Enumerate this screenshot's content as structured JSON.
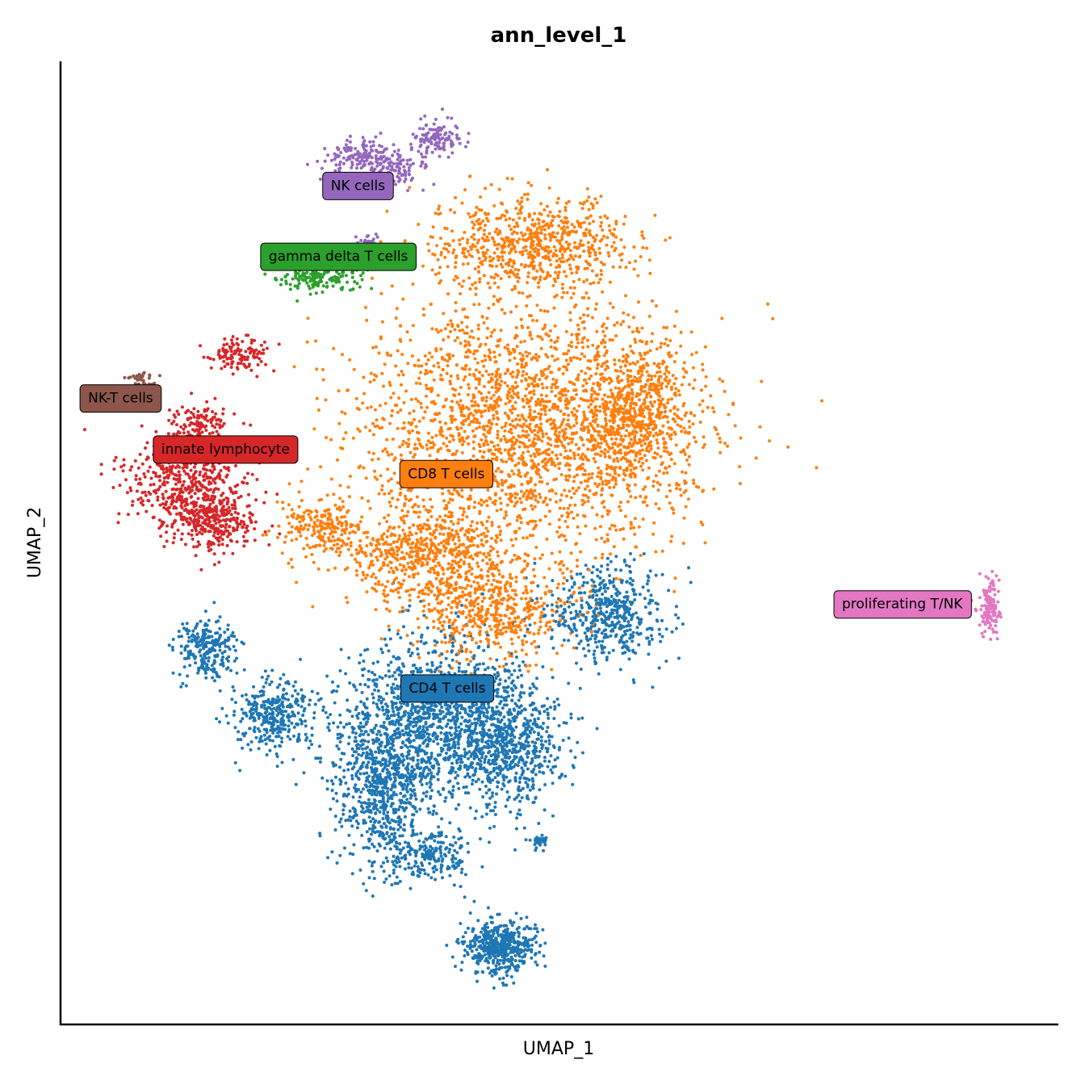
{
  "chart_data": {
    "type": "scatter",
    "title": "ann_level_1",
    "xlabel": "UMAP_1",
    "ylabel": "UMAP_2",
    "xlim": [
      0,
      100
    ],
    "ylim": [
      0,
      100
    ],
    "grid": false,
    "legend": "on data",
    "series": [
      {
        "name": "CD4 T cells",
        "color": "#1f77b4",
        "regions": [
          {
            "cx": 38,
            "cy": 32,
            "rx": 10,
            "ry": 8,
            "n": 1400
          },
          {
            "cx": 32,
            "cy": 24,
            "rx": 5,
            "ry": 8,
            "n": 700
          },
          {
            "cx": 45,
            "cy": 28,
            "rx": 5,
            "ry": 6,
            "n": 500
          },
          {
            "cx": 44,
            "cy": 7.5,
            "rx": 3.5,
            "ry": 2.8,
            "n": 500
          },
          {
            "cx": 14,
            "cy": 39,
            "rx": 3,
            "ry": 3,
            "n": 250
          },
          {
            "cx": 21,
            "cy": 32,
            "rx": 4,
            "ry": 4,
            "n": 350
          },
          {
            "cx": 55,
            "cy": 43,
            "rx": 6,
            "ry": 5,
            "n": 500
          },
          {
            "cx": 37,
            "cy": 17,
            "rx": 4,
            "ry": 3,
            "n": 200
          },
          {
            "cx": 48,
            "cy": 18.5,
            "rx": 0.8,
            "ry": 0.6,
            "n": 40
          }
        ]
      },
      {
        "name": "CD8 T cells",
        "color": "#ff7f0e",
        "regions": [
          {
            "cx": 46,
            "cy": 62,
            "rx": 16,
            "ry": 14,
            "n": 2200
          },
          {
            "cx": 47,
            "cy": 82,
            "rx": 10,
            "ry": 5,
            "n": 700
          },
          {
            "cx": 58,
            "cy": 64,
            "rx": 7,
            "ry": 8,
            "n": 700
          },
          {
            "cx": 36,
            "cy": 49,
            "rx": 9,
            "ry": 5,
            "n": 600
          },
          {
            "cx": 43,
            "cy": 43,
            "rx": 8,
            "ry": 5,
            "n": 500
          },
          {
            "cx": 26,
            "cy": 52,
            "rx": 4,
            "ry": 3,
            "n": 200
          }
        ]
      },
      {
        "name": "innate lymphocyte",
        "color": "#d62728",
        "regions": [
          {
            "cx": 12,
            "cy": 57,
            "rx": 6,
            "ry": 5,
            "n": 500
          },
          {
            "cx": 14.5,
            "cy": 52.5,
            "rx": 5,
            "ry": 3,
            "n": 300
          },
          {
            "cx": 17.5,
            "cy": 70,
            "rx": 3,
            "ry": 1.8,
            "n": 120
          },
          {
            "cx": 13.5,
            "cy": 63,
            "rx": 3,
            "ry": 2,
            "n": 100
          }
        ]
      },
      {
        "name": "gamma delta T cells",
        "color": "#2ca02c",
        "regions": [
          {
            "cx": 25.5,
            "cy": 78.5,
            "rx": 4.5,
            "ry": 1.8,
            "n": 180
          }
        ]
      },
      {
        "name": "NK cells",
        "color": "#9467bd",
        "regions": [
          {
            "cx": 30,
            "cy": 91,
            "rx": 4,
            "ry": 2,
            "n": 150
          },
          {
            "cx": 37.5,
            "cy": 93,
            "rx": 2.5,
            "ry": 2,
            "n": 120
          },
          {
            "cx": 34,
            "cy": 90,
            "rx": 3,
            "ry": 2,
            "n": 80
          },
          {
            "cx": 30.5,
            "cy": 82,
            "rx": 1.5,
            "ry": 1.2,
            "n": 40
          }
        ]
      },
      {
        "name": "NK-T cells",
        "color": "#8c564b",
        "regions": [
          {
            "cx": 7.5,
            "cy": 67.5,
            "rx": 1.6,
            "ry": 1,
            "n": 40
          }
        ]
      },
      {
        "name": "proliferating T/NK",
        "color": "#e377c2",
        "regions": [
          {
            "cx": 94,
            "cy": 43.5,
            "rx": 1.1,
            "ry": 3,
            "n": 130
          }
        ]
      }
    ],
    "annotations": [
      {
        "text": "NK cells",
        "x": 29.5,
        "y": 88,
        "color": "#9467bd"
      },
      {
        "text": "gamma delta T cells",
        "x": 27.5,
        "y": 80.5,
        "color": "#2ca02c"
      },
      {
        "text": "NK-T cells",
        "x": 5.3,
        "y": 65.5,
        "color": "#8c564b"
      },
      {
        "text": "innate lymphocyte",
        "x": 16,
        "y": 60.1,
        "color": "#d62728"
      },
      {
        "text": "CD8 T cells",
        "x": 38.5,
        "y": 57.5,
        "color": "#ff7f0e"
      },
      {
        "text": "proliferating T/NK",
        "x": 85,
        "y": 43.7,
        "color": "#e377c2"
      },
      {
        "text": "CD4 T cells",
        "x": 38.6,
        "y": 34.8,
        "color": "#1f77b4"
      }
    ]
  }
}
